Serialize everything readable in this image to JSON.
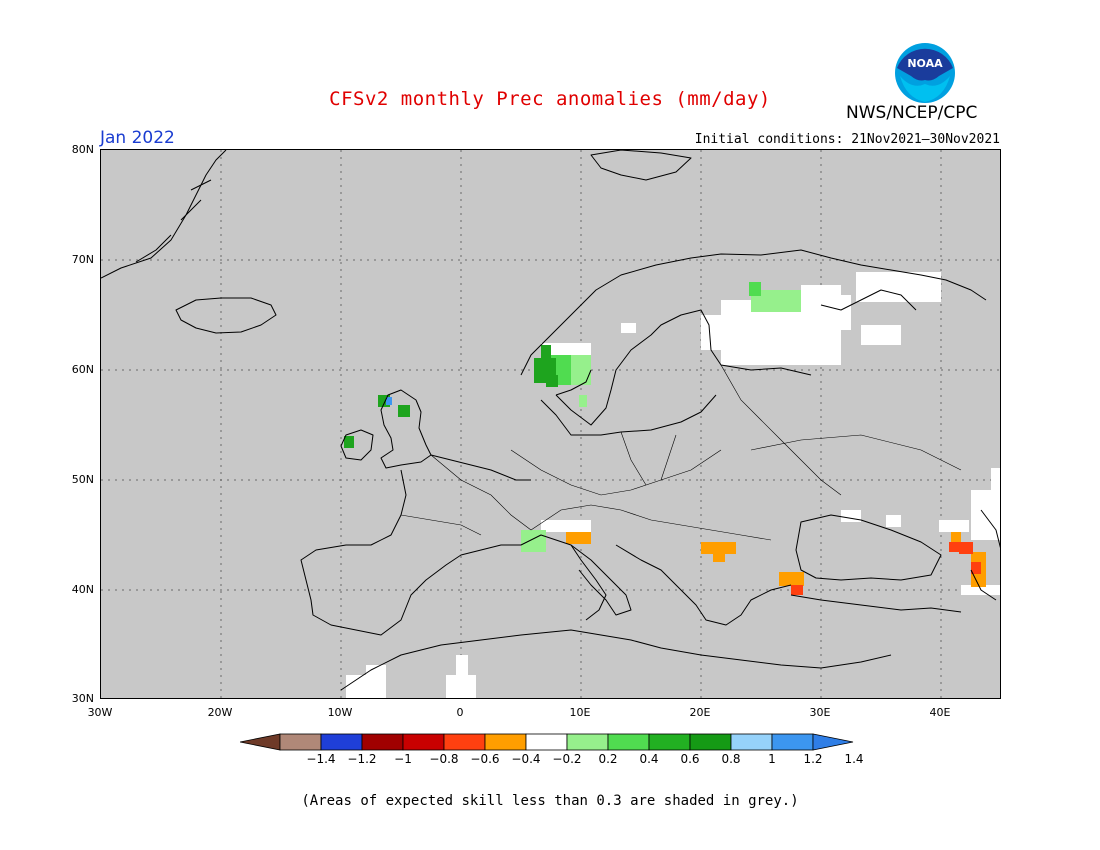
{
  "header": {
    "title": "CFSv2 monthly Prec anomalies (mm/day)",
    "agency": "NWS/NCEP/CPC",
    "logo_text": "NOAA",
    "month": "Jan 2022",
    "initial_conditions": "Initial conditions: 21Nov2021–30Nov2021"
  },
  "map": {
    "lat_labels": [
      "80N",
      "70N",
      "60N",
      "50N",
      "40N",
      "30N"
    ],
    "lon_labels": [
      "30W",
      "20W",
      "10W",
      "0",
      "10E",
      "20E",
      "30E",
      "40E"
    ],
    "background_grey": "#c8c8c8"
  },
  "colorbar": {
    "labels": [
      "−1.4",
      "−1.2",
      "−1",
      "−0.8",
      "−0.6",
      "−0.4",
      "−0.2",
      "0.2",
      "0.4",
      "0.6",
      "0.8",
      "1",
      "1.2",
      "1.4"
    ],
    "colors": [
      "#8b5a4a",
      "#b08878",
      "#1f3fd8",
      "#a00000",
      "#c80000",
      "#ff4010",
      "#ff9e00",
      "#ffffff",
      "#96f08c",
      "#50dc50",
      "#22b022",
      "#159a15",
      "#96d2fa",
      "#3c96f0",
      "#2f7ee6"
    ],
    "end_low": "#6e3a28",
    "end_high": "#2f7ee6"
  },
  "footer": "(Areas of expected skill less than 0.3 are shaded in grey.)"
}
